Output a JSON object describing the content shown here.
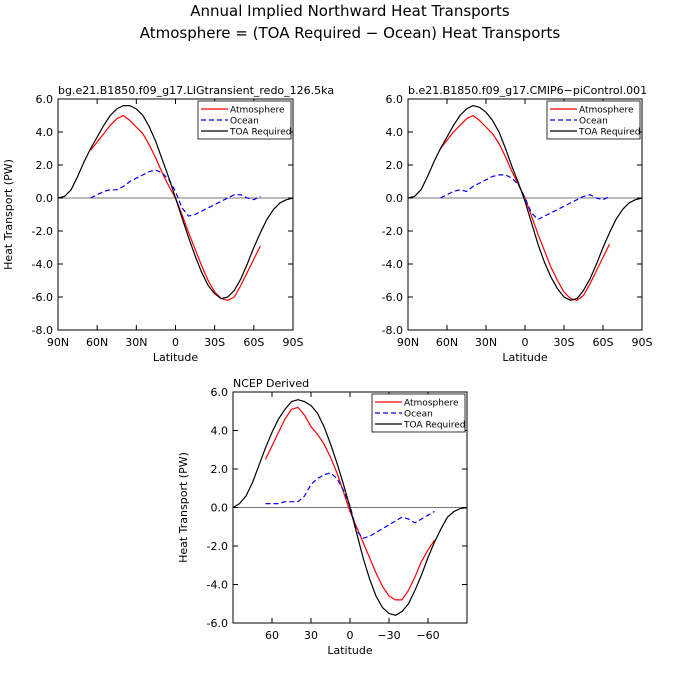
{
  "figure": {
    "title_line1": "Annual Implied Northward Heat Transports",
    "title_line2": "Atmosphere = (TOA Required − Ocean) Heat Transports"
  },
  "chart_data": [
    {
      "type": "line",
      "title": "bg.e21.B1850.f09_g17.LIGtransient_redo_126.5ka",
      "xlabel": "Latitude",
      "ylabel": "Heat Transport (PW)",
      "xlim": [
        90,
        -90
      ],
      "ylim": [
        -8,
        6
      ],
      "x_ticks": [
        90,
        60,
        30,
        0,
        -30,
        -60,
        -90
      ],
      "x_tick_labels": [
        "90N",
        "60N",
        "30N",
        "0",
        "30S",
        "60S",
        "90S"
      ],
      "y_ticks": [
        6,
        4,
        2,
        0,
        -2,
        -4,
        -6,
        -8
      ],
      "y_tick_labels": [
        "6.0",
        "4.0",
        "2.0",
        "0.0",
        "-2.0",
        "-4.0",
        "-6.0",
        "-8.0"
      ],
      "legend_position": "top-right",
      "zero_line": true,
      "series": [
        {
          "name": "Atmosphere",
          "color": "#ff0000",
          "dash": "solid",
          "x": [
            65,
            60,
            55,
            50,
            45,
            40,
            35,
            30,
            25,
            20,
            15,
            10,
            5,
            0,
            -5,
            -10,
            -15,
            -20,
            -25,
            -30,
            -35,
            -40,
            -45,
            -50,
            -55,
            -60,
            -65
          ],
          "y": [
            2.9,
            3.4,
            3.9,
            4.4,
            4.8,
            5.0,
            4.7,
            4.3,
            3.9,
            3.2,
            2.4,
            1.5,
            0.7,
            0.0,
            -1.0,
            -2.1,
            -3.1,
            -4.1,
            -5.0,
            -5.7,
            -6.1,
            -6.2,
            -6.0,
            -5.3,
            -4.5,
            -3.7,
            -2.9
          ]
        },
        {
          "name": "Ocean",
          "color": "#0000ff",
          "dash": "dashed",
          "x": [
            65,
            60,
            55,
            50,
            45,
            40,
            35,
            30,
            25,
            20,
            15,
            10,
            5,
            0,
            -5,
            -10,
            -15,
            -20,
            -25,
            -30,
            -35,
            -40,
            -45,
            -50,
            -55,
            -60,
            -65
          ],
          "y": [
            0.0,
            0.2,
            0.4,
            0.5,
            0.5,
            0.7,
            1.0,
            1.2,
            1.4,
            1.6,
            1.7,
            1.5,
            1.1,
            0.4,
            -0.6,
            -1.1,
            -1.0,
            -0.8,
            -0.6,
            -0.4,
            -0.2,
            0.0,
            0.2,
            0.2,
            0.0,
            -0.1,
            0.1
          ]
        },
        {
          "name": "TOA Required",
          "color": "#000000",
          "dash": "solid",
          "x": [
            90,
            85,
            80,
            75,
            70,
            65,
            60,
            55,
            50,
            45,
            40,
            35,
            30,
            25,
            20,
            15,
            10,
            5,
            0,
            -5,
            -10,
            -15,
            -20,
            -25,
            -30,
            -35,
            -40,
            -45,
            -50,
            -55,
            -60,
            -65,
            -70,
            -75,
            -80,
            -85,
            -90
          ],
          "y": [
            0.0,
            0.1,
            0.5,
            1.3,
            2.2,
            3.0,
            3.7,
            4.4,
            5.0,
            5.4,
            5.6,
            5.6,
            5.4,
            5.0,
            4.3,
            3.4,
            2.3,
            1.2,
            0.0,
            -1.2,
            -2.4,
            -3.5,
            -4.5,
            -5.3,
            -5.8,
            -6.1,
            -6.0,
            -5.6,
            -4.9,
            -4.0,
            -3.0,
            -2.1,
            -1.3,
            -0.7,
            -0.3,
            -0.1,
            0.0
          ]
        }
      ]
    },
    {
      "type": "line",
      "title": "b.e21.B1850.f09_g17.CMIP6−piControl.001",
      "xlabel": "Latitude",
      "ylabel": "",
      "xlim": [
        90,
        -90
      ],
      "ylim": [
        -8,
        6
      ],
      "x_ticks": [
        90,
        60,
        30,
        0,
        -30,
        -60,
        -90
      ],
      "x_tick_labels": [
        "90N",
        "60N",
        "30N",
        "0",
        "30S",
        "60S",
        "90S"
      ],
      "y_ticks": [
        6,
        4,
        2,
        0,
        -2,
        -4,
        -6,
        -8
      ],
      "y_tick_labels": [
        "6.0",
        "4.0",
        "2.0",
        "0.0",
        "-2.0",
        "-4.0",
        "-6.0",
        "-8.0"
      ],
      "legend_position": "top-right",
      "zero_line": true,
      "series": [
        {
          "name": "Atmosphere",
          "color": "#ff0000",
          "dash": "solid",
          "x": [
            65,
            60,
            55,
            50,
            45,
            40,
            35,
            30,
            25,
            20,
            15,
            10,
            5,
            0,
            -5,
            -10,
            -15,
            -20,
            -25,
            -30,
            -35,
            -40,
            -45,
            -50,
            -55,
            -60,
            -65
          ],
          "y": [
            3.0,
            3.5,
            4.0,
            4.4,
            4.8,
            5.0,
            4.7,
            4.3,
            3.9,
            3.3,
            2.5,
            1.6,
            0.8,
            0.0,
            -1.1,
            -2.2,
            -3.2,
            -4.2,
            -5.0,
            -5.7,
            -6.1,
            -6.2,
            -5.9,
            -5.2,
            -4.4,
            -3.6,
            -2.8
          ]
        },
        {
          "name": "Ocean",
          "color": "#0000ff",
          "dash": "dashed",
          "x": [
            65,
            60,
            55,
            50,
            45,
            40,
            35,
            30,
            25,
            20,
            15,
            10,
            5,
            0,
            -5,
            -10,
            -15,
            -20,
            -25,
            -30,
            -35,
            -40,
            -45,
            -50,
            -55,
            -60,
            -65
          ],
          "y": [
            0.0,
            0.2,
            0.4,
            0.5,
            0.4,
            0.7,
            0.9,
            1.1,
            1.3,
            1.4,
            1.4,
            1.2,
            0.8,
            0.0,
            -0.9,
            -1.3,
            -1.1,
            -0.9,
            -0.7,
            -0.5,
            -0.3,
            -0.1,
            0.1,
            0.2,
            0.0,
            -0.1,
            0.1
          ]
        },
        {
          "name": "TOA Required",
          "color": "#000000",
          "dash": "solid",
          "x": [
            90,
            85,
            80,
            75,
            70,
            65,
            60,
            55,
            50,
            45,
            40,
            35,
            30,
            25,
            20,
            15,
            10,
            5,
            0,
            -5,
            -10,
            -15,
            -20,
            -25,
            -30,
            -35,
            -40,
            -45,
            -50,
            -55,
            -60,
            -65,
            -70,
            -75,
            -80,
            -85,
            -90
          ],
          "y": [
            0.0,
            0.1,
            0.5,
            1.3,
            2.2,
            3.0,
            3.7,
            4.4,
            5.0,
            5.4,
            5.6,
            5.5,
            5.2,
            4.7,
            4.0,
            3.0,
            1.9,
            0.9,
            -0.2,
            -1.5,
            -2.8,
            -3.9,
            -4.8,
            -5.5,
            -6.0,
            -6.2,
            -6.1,
            -5.6,
            -4.9,
            -4.0,
            -3.0,
            -2.1,
            -1.3,
            -0.7,
            -0.3,
            -0.1,
            0.0
          ]
        }
      ]
    },
    {
      "type": "line",
      "title": "NCEP Derived",
      "xlabel": "Latitude",
      "ylabel": "Heat Transport (PW)",
      "xlim": [
        90,
        -90
      ],
      "ylim": [
        -6,
        6
      ],
      "x_ticks": [
        60,
        30,
        0,
        -30,
        -60
      ],
      "x_tick_labels": [
        "60",
        "30",
        "0",
        "−30",
        "−60"
      ],
      "y_ticks": [
        6,
        4,
        2,
        0,
        -2,
        -4,
        -6
      ],
      "y_tick_labels": [
        "6.0",
        "4.0",
        "2.0",
        "0.0",
        "-2.0",
        "-4.0",
        "-6.0"
      ],
      "legend_position": "top-right",
      "zero_line": true,
      "series": [
        {
          "name": "Atmosphere",
          "color": "#ff0000",
          "dash": "solid",
          "x": [
            65,
            60,
            55,
            50,
            45,
            40,
            35,
            30,
            25,
            20,
            15,
            10,
            5,
            0,
            -5,
            -10,
            -15,
            -20,
            -25,
            -30,
            -35,
            -40,
            -45,
            -50,
            -55,
            -60,
            -65
          ],
          "y": [
            2.5,
            3.2,
            3.9,
            4.6,
            5.1,
            5.2,
            4.8,
            4.2,
            3.8,
            3.3,
            2.6,
            1.8,
            0.8,
            -0.2,
            -1.0,
            -1.8,
            -2.6,
            -3.4,
            -4.1,
            -4.6,
            -4.8,
            -4.8,
            -4.3,
            -3.6,
            -2.8,
            -2.2,
            -1.7
          ]
        },
        {
          "name": "Ocean",
          "color": "#0000ff",
          "dash": "dashed",
          "x": [
            65,
            60,
            55,
            50,
            45,
            40,
            35,
            30,
            25,
            20,
            15,
            10,
            5,
            0,
            -5,
            -10,
            -15,
            -20,
            -25,
            -30,
            -35,
            -40,
            -45,
            -50,
            -55,
            -60,
            -65
          ],
          "y": [
            0.2,
            0.2,
            0.2,
            0.3,
            0.3,
            0.3,
            0.6,
            1.2,
            1.5,
            1.7,
            1.8,
            1.5,
            0.9,
            0.1,
            -1.2,
            -1.6,
            -1.5,
            -1.3,
            -1.1,
            -0.9,
            -0.7,
            -0.5,
            -0.6,
            -0.8,
            -0.6,
            -0.4,
            -0.2
          ]
        },
        {
          "name": "TOA Required",
          "color": "#000000",
          "dash": "solid",
          "x": [
            90,
            85,
            80,
            75,
            70,
            65,
            60,
            55,
            50,
            45,
            40,
            35,
            30,
            25,
            20,
            15,
            10,
            5,
            0,
            -5,
            -10,
            -15,
            -20,
            -25,
            -30,
            -35,
            -40,
            -45,
            -50,
            -55,
            -60,
            -65,
            -70,
            -75,
            -80,
            -85,
            -90
          ],
          "y": [
            0.0,
            0.2,
            0.6,
            1.3,
            2.2,
            3.1,
            3.9,
            4.6,
            5.1,
            5.5,
            5.6,
            5.5,
            5.3,
            4.9,
            4.2,
            3.3,
            2.3,
            1.2,
            0.0,
            -1.3,
            -2.6,
            -3.7,
            -4.6,
            -5.2,
            -5.5,
            -5.6,
            -5.4,
            -5.0,
            -4.3,
            -3.5,
            -2.6,
            -1.8,
            -1.1,
            -0.5,
            -0.2,
            -0.05,
            0.0
          ]
        }
      ]
    }
  ]
}
